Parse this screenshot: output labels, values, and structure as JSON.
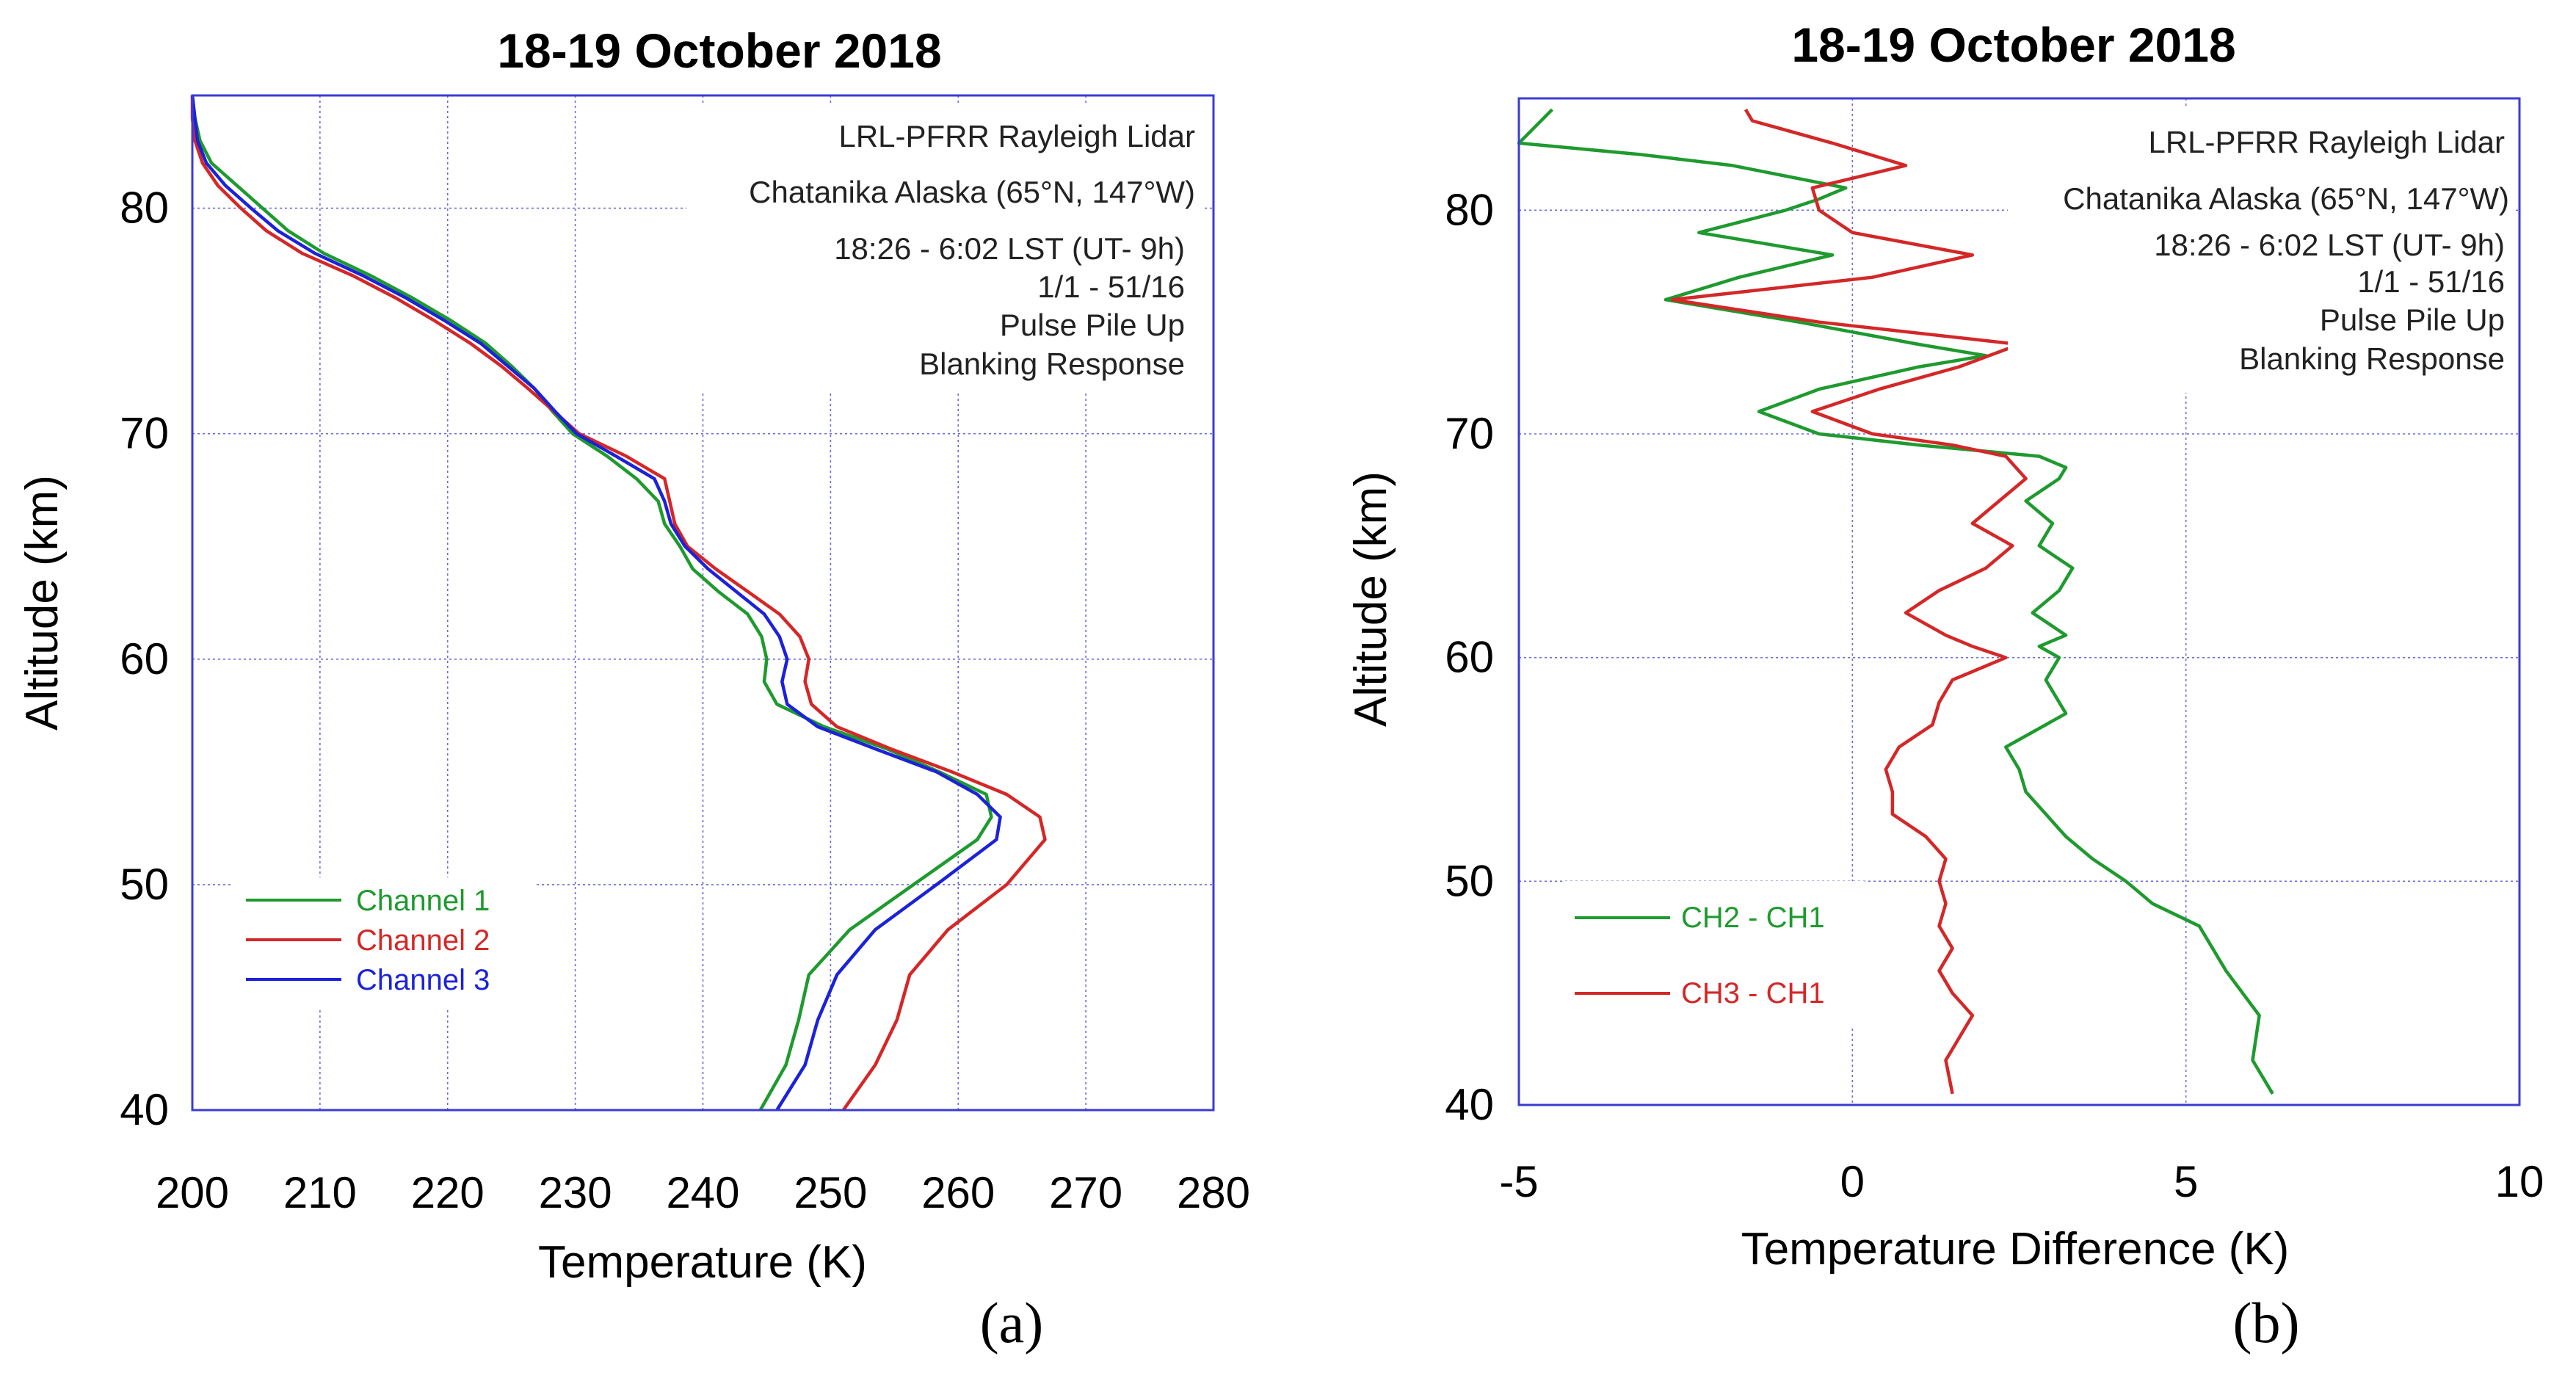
{
  "colors": {
    "green": "#1e9a2e",
    "red": "#d42727",
    "blue": "#1c22d8",
    "frame": "#3b3bd6",
    "grid": "#6a6ae0"
  },
  "chart_data": [
    {
      "type": "line",
      "panel": "(a)",
      "title": "18-19 October 2018",
      "xlabel": "Temperature (K)",
      "ylabel": "Altitude (km)",
      "xlim": [
        200,
        280
      ],
      "ylim": [
        40,
        85
      ],
      "xticks": [
        200,
        210,
        220,
        230,
        240,
        250,
        260,
        270,
        280
      ],
      "yticks": [
        40,
        50,
        60,
        70,
        80
      ],
      "grid": true,
      "legend_position": "lower-left",
      "info": [
        "LRL-PFRR Rayleigh Lidar",
        "Chatanika Alaska (65°N, 147°W)",
        "18:26 - 6:02 LST (UT- 9h)",
        "1/1 - 51/16",
        "Pulse Pile Up",
        "Blanking Response"
      ],
      "series": [
        {
          "name": "Channel 1",
          "color": "#1e9a2e",
          "y": [
            40,
            42,
            44,
            46,
            48,
            50,
            52,
            53,
            54,
            55,
            56,
            57,
            58,
            59,
            60,
            61,
            62,
            63,
            64,
            65,
            66,
            67,
            68,
            69,
            70,
            71,
            72,
            73,
            74,
            75,
            76,
            77,
            78,
            79,
            80,
            81,
            82,
            83,
            84,
            85
          ],
          "x": [
            244.5,
            246.5,
            247.5,
            248.3,
            251.5,
            256.5,
            261.5,
            262.6,
            262.2,
            258.5,
            254.5,
            249.5,
            245.8,
            244.8,
            245.0,
            244.6,
            243.5,
            241.2,
            239.2,
            238.2,
            237.0,
            236.5,
            234.8,
            232.5,
            229.8,
            228.2,
            226.8,
            225.0,
            223.0,
            220.3,
            217.3,
            214.0,
            210.3,
            207.5,
            205.5,
            203.5,
            201.5,
            200.6,
            200.2,
            200.0
          ]
        },
        {
          "name": "Channel 2",
          "color": "#d42727",
          "y": [
            40,
            42,
            44,
            46,
            48,
            50,
            52,
            53,
            54,
            55,
            56,
            57,
            58,
            59,
            60,
            61,
            62,
            63,
            64,
            65,
            66,
            67,
            68,
            69,
            70,
            71,
            72,
            73,
            74,
            75,
            76,
            77,
            78,
            79,
            80,
            81,
            82,
            83,
            84,
            85
          ],
          "x": [
            251.0,
            253.5,
            255.2,
            256.2,
            259.2,
            263.8,
            266.8,
            266.4,
            263.8,
            259.5,
            254.8,
            250.5,
            248.5,
            248.0,
            248.3,
            247.6,
            246.0,
            243.5,
            241.0,
            238.8,
            237.8,
            237.4,
            237.0,
            234.0,
            230.3,
            228.3,
            226.3,
            224.2,
            221.8,
            219.0,
            216.0,
            212.6,
            208.6,
            205.8,
            203.8,
            202.0,
            200.8,
            200.2,
            200.0,
            200.0
          ]
        },
        {
          "name": "Channel 3",
          "color": "#1c22d8",
          "y": [
            40,
            42,
            44,
            46,
            48,
            50,
            52,
            53,
            54,
            55,
            56,
            57,
            58,
            59,
            60,
            61,
            62,
            63,
            64,
            65,
            66,
            67,
            68,
            69,
            70,
            71,
            72,
            73,
            74,
            75,
            76,
            77,
            78,
            79,
            80,
            81,
            82,
            83,
            84,
            85
          ],
          "x": [
            245.8,
            248.0,
            249.0,
            250.5,
            253.5,
            258.3,
            263.0,
            263.3,
            261.5,
            258.3,
            253.6,
            249.0,
            246.6,
            246.2,
            246.6,
            246.0,
            244.8,
            242.6,
            240.4,
            238.6,
            237.5,
            237.0,
            236.2,
            233.2,
            230.1,
            228.4,
            226.8,
            224.7,
            222.6,
            219.8,
            216.8,
            213.4,
            209.6,
            206.7,
            204.6,
            202.6,
            201.1,
            200.4,
            200.2,
            200.0
          ]
        }
      ]
    },
    {
      "type": "line",
      "panel": "(b)",
      "title": "18-19 October 2018",
      "xlabel": "Temperature Difference (K)",
      "ylabel": "Altitude (km)",
      "xlim": [
        -5,
        10
      ],
      "ylim": [
        40,
        85
      ],
      "xticks": [
        -5,
        0,
        5,
        10
      ],
      "yticks": [
        40,
        50,
        60,
        70,
        80
      ],
      "grid": true,
      "legend_position": "lower-left",
      "info": [
        "LRL-PFRR Rayleigh Lidar",
        "Chatanika Alaska (65°N, 147°W)",
        "18:26 - 6:02 LST (UT- 9h)",
        "1/1 - 51/16",
        "Pulse Pile Up",
        "Blanking Response"
      ],
      "series": [
        {
          "name": "CH2 - CH1",
          "color": "#1e9a2e",
          "y": [
            40.5,
            42,
            44,
            46,
            48,
            49,
            50,
            51,
            52,
            53,
            54,
            55,
            56,
            57,
            57.5,
            58,
            59,
            60,
            60.5,
            61,
            62,
            63,
            64,
            65,
            66,
            67,
            68,
            68.5,
            69,
            69.5,
            70,
            71,
            72,
            73,
            73.5,
            74,
            75,
            76,
            77,
            78,
            79,
            80,
            80.5,
            81,
            82,
            82.5,
            83,
            84.5
          ],
          "x": [
            6.3,
            6.0,
            6.1,
            5.6,
            5.2,
            4.5,
            4.1,
            3.6,
            3.2,
            2.9,
            2.6,
            2.5,
            2.3,
            2.9,
            3.2,
            3.1,
            2.9,
            3.1,
            2.8,
            3.2,
            2.7,
            3.1,
            3.3,
            2.8,
            3.0,
            2.6,
            3.1,
            3.2,
            2.8,
            1.0,
            -0.5,
            -1.4,
            -0.5,
            1.0,
            2.0,
            1.0,
            -0.8,
            -2.8,
            -1.7,
            -0.3,
            -2.3,
            -1.0,
            -0.5,
            -0.1,
            -1.8,
            -3.2,
            -5.0,
            -4.5
          ]
        },
        {
          "name": "CH3 - CH1",
          "color": "#d42727",
          "y": [
            40.5,
            42,
            43,
            44,
            45,
            46,
            47,
            48,
            49,
            50,
            51,
            52,
            53,
            54,
            55,
            56,
            57,
            58,
            59,
            60,
            60.5,
            61,
            62,
            63,
            64,
            65,
            66,
            67,
            68,
            69,
            69.5,
            70,
            71,
            72,
            73,
            74,
            75,
            76,
            77,
            78,
            79,
            80,
            81,
            82,
            83,
            84,
            84.5
          ],
          "x": [
            1.5,
            1.4,
            1.6,
            1.8,
            1.5,
            1.3,
            1.5,
            1.3,
            1.4,
            1.3,
            1.4,
            1.1,
            0.6,
            0.6,
            0.5,
            0.7,
            1.2,
            1.3,
            1.5,
            2.3,
            1.8,
            1.4,
            0.8,
            1.3,
            2.0,
            2.4,
            1.8,
            2.2,
            2.6,
            2.3,
            1.5,
            0.3,
            -0.6,
            0.4,
            1.6,
            2.5,
            -0.5,
            -2.7,
            0.3,
            1.8,
            0.0,
            -0.5,
            -0.6,
            0.8,
            -0.3,
            -1.5,
            -1.6
          ]
        }
      ]
    }
  ]
}
